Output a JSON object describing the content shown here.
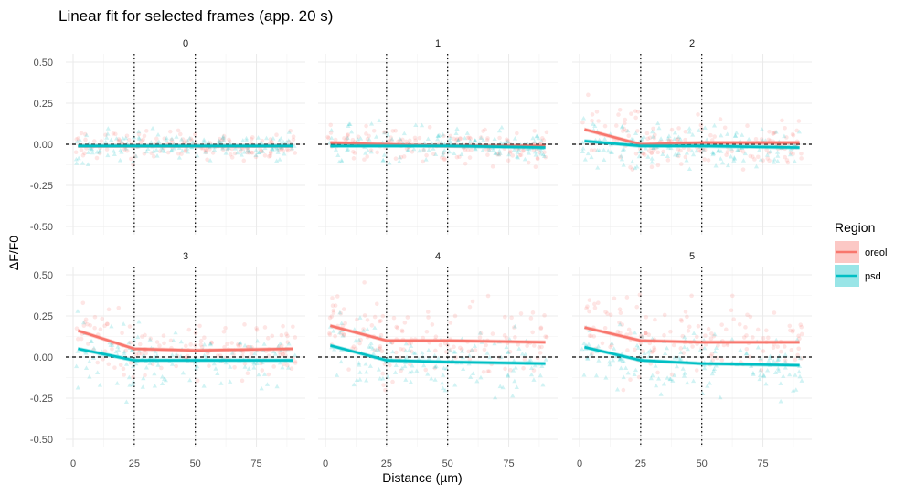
{
  "chart_data": {
    "type": "scatter",
    "title": "Linear fit for selected frames (app. 20 s)",
    "xlabel": "Distance (µm)",
    "ylabel": "ΔF/F0",
    "xlim": [
      -3,
      95
    ],
    "ylim": [
      -0.55,
      0.55
    ],
    "x_ticks": [
      0,
      25,
      50,
      75
    ],
    "x_tick_labels": [
      "0",
      "25",
      "50",
      "75"
    ],
    "y_ticks": [
      -0.5,
      -0.25,
      0,
      0.25,
      0.5
    ],
    "y_tick_labels": [
      "-0.50",
      "-0.25",
      "0.00",
      "0.25",
      "0.50"
    ],
    "reference_lines": {
      "vertical_dotted": [
        25,
        50
      ],
      "horizontal_dashed": 0
    },
    "grid": true,
    "legend": {
      "title": "Region",
      "position": "right",
      "entries": [
        {
          "label": "oreol",
          "color": "#F8766D"
        },
        {
          "label": "psd",
          "color": "#00BFC4"
        }
      ]
    },
    "facets": [
      {
        "label": "0",
        "fits": [
          {
            "name": "oreol",
            "points": [
              [
                2,
                -0.01
              ],
              [
                25,
                -0.01
              ],
              [
                50,
                -0.01
              ],
              [
                90,
                -0.01
              ]
            ]
          },
          {
            "name": "psd",
            "points": [
              [
                2,
                -0.01
              ],
              [
                25,
                -0.01
              ],
              [
                50,
                -0.01
              ],
              [
                90,
                -0.01
              ]
            ]
          }
        ],
        "scatter": {
          "oreol_spread": 0.04,
          "psd_spread": 0.04
        }
      },
      {
        "label": "1",
        "fits": [
          {
            "name": "oreol",
            "points": [
              [
                2,
                0.01
              ],
              [
                25,
                0.0
              ],
              [
                50,
                -0.01
              ],
              [
                90,
                -0.01
              ]
            ]
          },
          {
            "name": "psd",
            "points": [
              [
                2,
                -0.01
              ],
              [
                25,
                -0.01
              ],
              [
                50,
                -0.01
              ],
              [
                90,
                -0.02
              ]
            ]
          }
        ],
        "scatter": {
          "oreol_spread": 0.05,
          "psd_spread": 0.05
        }
      },
      {
        "label": "2",
        "fits": [
          {
            "name": "oreol",
            "points": [
              [
                2,
                0.09
              ],
              [
                25,
                0.0
              ],
              [
                50,
                0.01
              ],
              [
                90,
                0.01
              ]
            ]
          },
          {
            "name": "psd",
            "points": [
              [
                2,
                0.02
              ],
              [
                25,
                -0.01
              ],
              [
                50,
                -0.01
              ],
              [
                90,
                -0.02
              ]
            ]
          }
        ],
        "scatter": {
          "oreol_spread": 0.07,
          "psd_spread": 0.06
        }
      },
      {
        "label": "3",
        "fits": [
          {
            "name": "oreol",
            "points": [
              [
                2,
                0.16
              ],
              [
                25,
                0.05
              ],
              [
                50,
                0.04
              ],
              [
                90,
                0.05
              ]
            ]
          },
          {
            "name": "psd",
            "points": [
              [
                2,
                0.05
              ],
              [
                25,
                -0.02
              ],
              [
                50,
                -0.02
              ],
              [
                90,
                -0.02
              ]
            ]
          }
        ],
        "scatter": {
          "oreol_spread": 0.09,
          "psd_spread": 0.08
        }
      },
      {
        "label": "4",
        "fits": [
          {
            "name": "oreol",
            "points": [
              [
                2,
                0.19
              ],
              [
                25,
                0.1
              ],
              [
                50,
                0.1
              ],
              [
                90,
                0.09
              ]
            ]
          },
          {
            "name": "psd",
            "points": [
              [
                2,
                0.07
              ],
              [
                25,
                -0.02
              ],
              [
                50,
                -0.03
              ],
              [
                90,
                -0.04
              ]
            ]
          }
        ],
        "scatter": {
          "oreol_spread": 0.1,
          "psd_spread": 0.09
        }
      },
      {
        "label": "5",
        "fits": [
          {
            "name": "oreol",
            "points": [
              [
                2,
                0.18
              ],
              [
                25,
                0.1
              ],
              [
                50,
                0.09
              ],
              [
                90,
                0.09
              ]
            ]
          },
          {
            "name": "psd",
            "points": [
              [
                2,
                0.06
              ],
              [
                25,
                -0.02
              ],
              [
                50,
                -0.04
              ],
              [
                90,
                -0.05
              ]
            ]
          }
        ],
        "scatter": {
          "oreol_spread": 0.1,
          "psd_spread": 0.09
        }
      }
    ]
  }
}
